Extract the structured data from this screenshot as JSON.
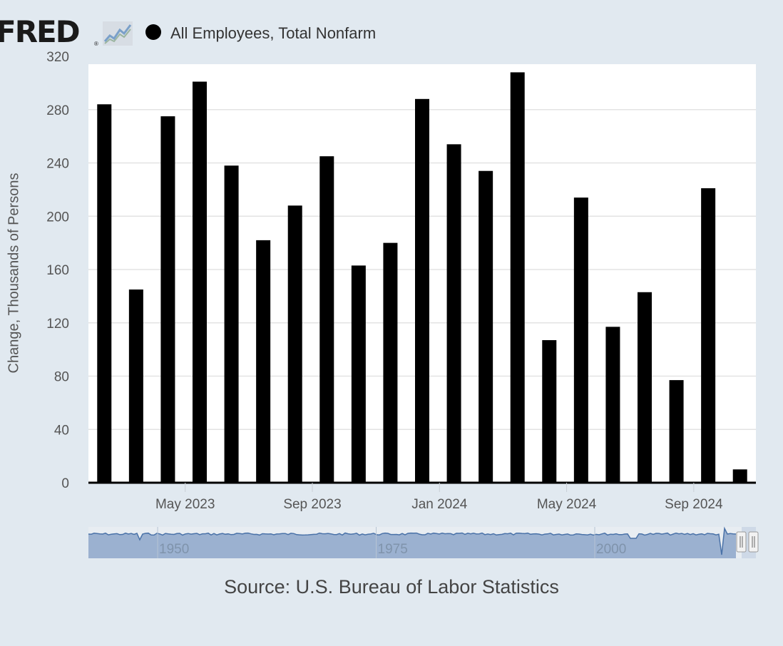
{
  "header": {
    "logo_text": "FRED",
    "logo_reg": "®",
    "logo_icon": "chart-line-icon",
    "series_label": "All Employees, Total Nonfarm"
  },
  "chart_data": {
    "type": "bar",
    "title": "",
    "xlabel": "",
    "ylabel": "Change, Thousands of Persons",
    "ylim": [
      0,
      320
    ],
    "yticks": [
      0,
      40,
      80,
      120,
      160,
      200,
      240,
      280,
      320
    ],
    "x": [
      "2023-02",
      "2023-03",
      "2023-04",
      "2023-05",
      "2023-06",
      "2023-07",
      "2023-08",
      "2023-09",
      "2023-10",
      "2023-11",
      "2023-12",
      "2024-01",
      "2024-02",
      "2024-03",
      "2024-04",
      "2024-05",
      "2024-06",
      "2024-07",
      "2024-08",
      "2024-09",
      "2024-10"
    ],
    "series": [
      {
        "name": "All Employees, Total Nonfarm",
        "color": "#000000",
        "values": [
          284,
          145,
          275,
          301,
          238,
          182,
          208,
          245,
          163,
          180,
          288,
          254,
          234,
          308,
          107,
          214,
          117,
          143,
          77,
          221,
          10
        ]
      }
    ],
    "xtick_labels": [
      {
        "label": "May 2023",
        "x": "2023-05"
      },
      {
        "label": "Sep 2023",
        "x": "2023-09"
      },
      {
        "label": "Jan 2024",
        "x": "2024-01"
      },
      {
        "label": "May 2024",
        "x": "2024-05"
      },
      {
        "label": "Sep 2024",
        "x": "2024-09"
      }
    ],
    "grid": true,
    "legend": "top-left",
    "navigator": {
      "labels": [
        "1950",
        "1975",
        "2000"
      ],
      "label_years": [
        1950,
        1975,
        2000
      ],
      "range_years": [
        1939,
        2025
      ]
    }
  },
  "footer": {
    "source": "Source: U.S. Bureau of Labor Statistics"
  },
  "colors": {
    "background": "#e1e9f0",
    "plot_background": "#ffffff",
    "bar": "#000000",
    "navigator_fill": "#9bb1d0",
    "navigator_line": "#4a72a8"
  }
}
